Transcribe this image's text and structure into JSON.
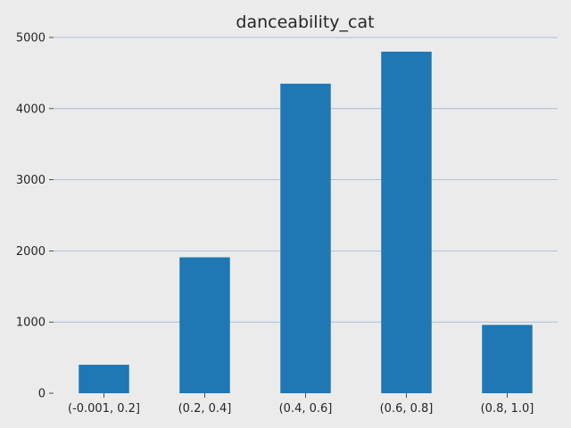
{
  "chart_data": {
    "type": "bar",
    "title": "danceability_cat",
    "xlabel": "",
    "ylabel": "",
    "categories": [
      "(-0.001, 0.2]",
      "(0.2, 0.4]",
      "(0.4, 0.6]",
      "(0.6, 0.8]",
      "(0.8, 1.0]"
    ],
    "values": [
      400,
      1910,
      4350,
      4800,
      960
    ],
    "ylim": [
      0,
      5000
    ],
    "yticks": [
      "0",
      "1000",
      "2000",
      "3000",
      "4000",
      "5000"
    ],
    "grid": "horizontal",
    "legend": "none",
    "colors": {
      "bar": "#1f77b4",
      "grid": "#9db4da",
      "background": "#ebebeb",
      "text": "#262626"
    }
  }
}
